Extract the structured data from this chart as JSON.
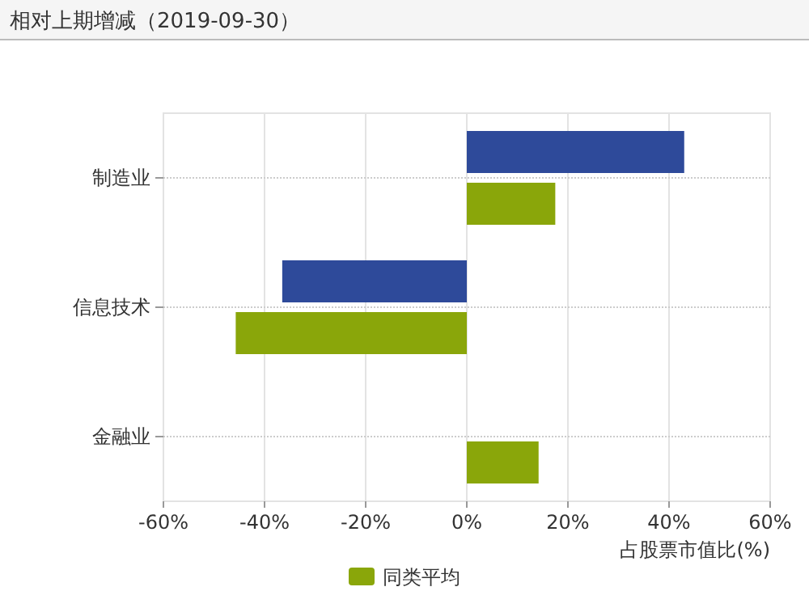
{
  "chart_data": {
    "type": "bar",
    "orientation": "horizontal",
    "title": "相对上期增减（2019-09-30）",
    "xlabel": "占股票市值比(%)",
    "categories": [
      "制造业",
      "信息技术",
      "金融业"
    ],
    "series": [
      {
        "color": "#2e4a9a",
        "values": [
          43,
          -36.5,
          null
        ]
      },
      {
        "name": "同类平均",
        "color": "#8aa60a",
        "values": [
          17.5,
          -45.7,
          14.2
        ]
      }
    ],
    "xlim": [
      -60,
      60
    ],
    "xticks": [
      {
        "value": -60,
        "label": "-60%"
      },
      {
        "value": -40,
        "label": "-40%"
      },
      {
        "value": -20,
        "label": "-20%"
      },
      {
        "value": 0,
        "label": "0%"
      },
      {
        "value": 20,
        "label": "20%"
      },
      {
        "value": 40,
        "label": "40%"
      },
      {
        "value": 60,
        "label": "60%"
      }
    ],
    "grid": true,
    "legend": "bottom"
  }
}
